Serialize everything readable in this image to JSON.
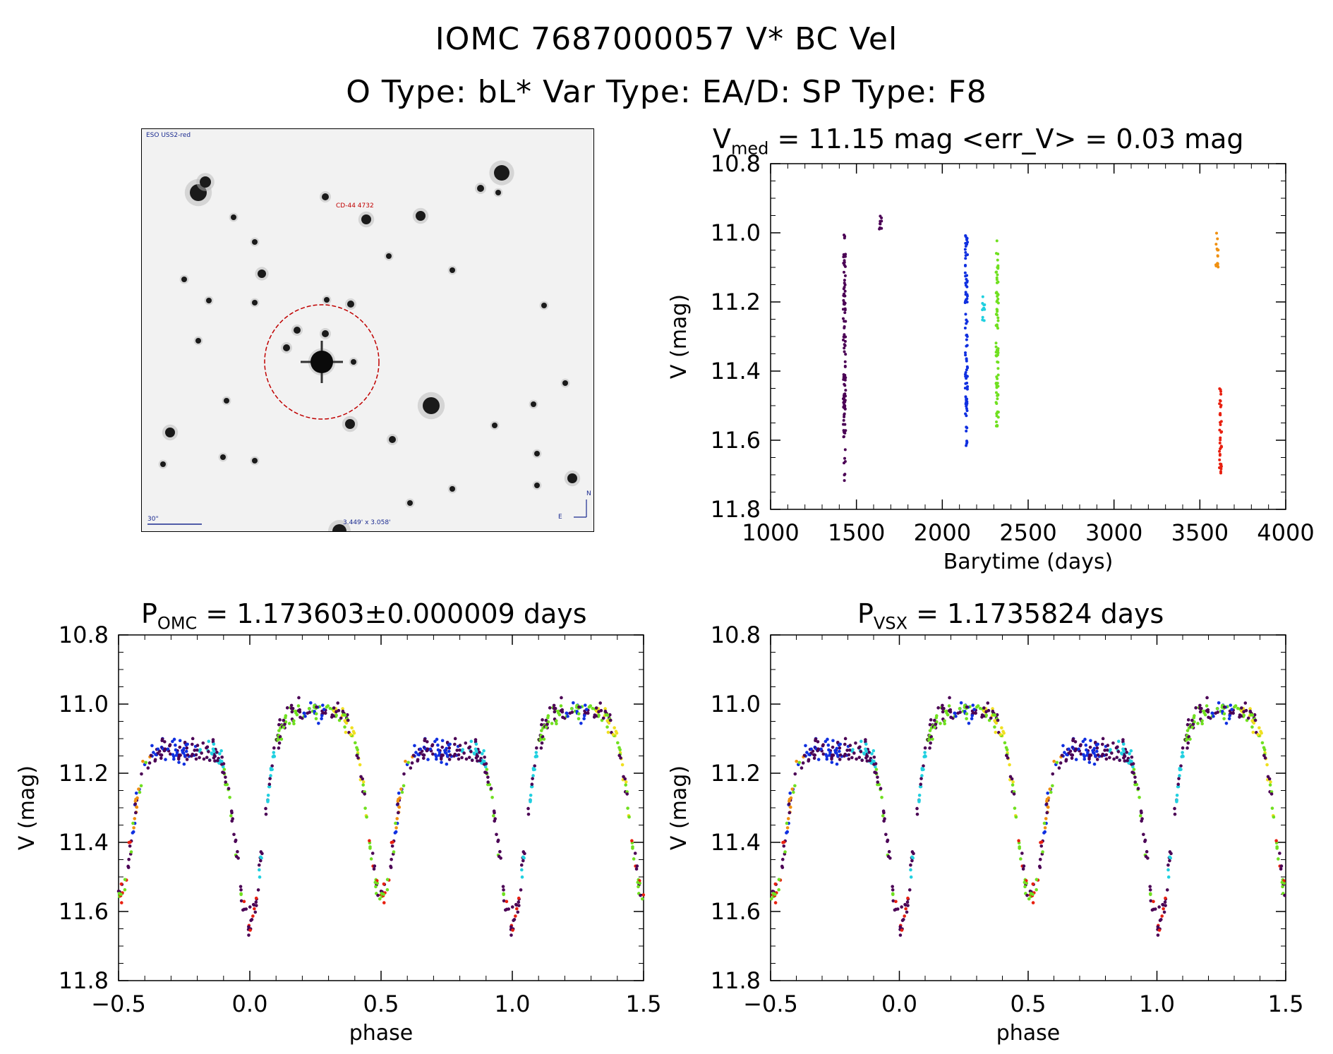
{
  "header": {
    "line1": "IOMC 7687000057   V* BC Vel",
    "line2": "O Type: bL*  Var Type: EA/D:  SP Type: F8"
  },
  "sky_image": {
    "survey_label": "ESO USS2-red",
    "target_label": "CD-44 4732",
    "scale_label": "30\"",
    "size_label": "3.449' x 3.058'",
    "north_label": "N",
    "east_label": "E"
  },
  "panels": {
    "lightcurve": {
      "title_main": "V",
      "title_sub": "med",
      "title_rest": " = 11.15 mag <err_V> = 0.03 mag"
    },
    "phase_omc": {
      "title_main": "P",
      "title_sub": "OMC",
      "title_rest": " = 1.173603±0.000009 days"
    },
    "phase_vsx": {
      "title_main": "P",
      "title_sub": "VSX",
      "title_rest": " = 1.1735824 days"
    }
  },
  "chart_data": [
    {
      "type": "scatter",
      "name": "lightcurve",
      "xlabel": "Barytime (days)",
      "ylabel": "V (mag)",
      "xlim": [
        1000,
        4000
      ],
      "ylim": [
        11.8,
        10.8
      ],
      "y_inverted": true,
      "xticks": [
        "1000",
        "1500",
        "2000",
        "2500",
        "3000",
        "3500",
        "4000"
      ],
      "yticks": [
        "10.8",
        "11.0",
        "11.2",
        "11.4",
        "11.6",
        "11.8"
      ],
      "groups": [
        {
          "x": 1430,
          "ymin": 11.0,
          "ymax": 11.72,
          "color": "#4b0055"
        },
        {
          "x": 1640,
          "ymin": 10.95,
          "ymax": 10.99,
          "color": "#4b0055"
        },
        {
          "x": 2140,
          "ymin": 11.0,
          "ymax": 11.62,
          "color": "#1030e0"
        },
        {
          "x": 2240,
          "ymin": 11.18,
          "ymax": 11.26,
          "color": "#20d0e0"
        },
        {
          "x": 2320,
          "ymin": 11.02,
          "ymax": 11.58,
          "color": "#70e020"
        },
        {
          "x": 3600,
          "ymin": 11.0,
          "ymax": 11.1,
          "color": "#f09010"
        },
        {
          "x": 3620,
          "ymin": 11.43,
          "ymax": 11.7,
          "color": "#e82010"
        }
      ],
      "grid": false
    },
    {
      "type": "scatter",
      "name": "phase_omc",
      "xlabel": "phase",
      "ylabel": "V (mag)",
      "xlim": [
        -0.5,
        1.5
      ],
      "ylim": [
        11.8,
        10.8
      ],
      "y_inverted": true,
      "xticks": [
        "−0.5",
        "0.0",
        "0.5",
        "1.0",
        "1.5"
      ],
      "yticks": [
        "10.8",
        "11.0",
        "11.2",
        "11.4",
        "11.6",
        "11.8"
      ],
      "period_days": 1.173603,
      "grid": false
    },
    {
      "type": "scatter",
      "name": "phase_vsx",
      "xlabel": "phase",
      "ylabel": "V (mag)",
      "xlim": [
        -0.5,
        1.5
      ],
      "ylim": [
        11.8,
        10.8
      ],
      "y_inverted": true,
      "xticks": [
        "−0.5",
        "0.0",
        "0.5",
        "1.0",
        "1.5"
      ],
      "yticks": [
        "10.8",
        "11.0",
        "11.2",
        "11.4",
        "11.6",
        "11.8"
      ],
      "period_days": 1.1735824,
      "grid": false
    }
  ],
  "colors": {
    "purple": "#4b0055",
    "blue": "#1030e0",
    "cyan": "#20d0e0",
    "green": "#70e020",
    "yellow": "#f0e020",
    "orange": "#f09010",
    "red": "#e82010",
    "target_circle": "#c00000",
    "label_blue": "#1a2a90"
  }
}
